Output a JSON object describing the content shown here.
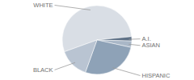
{
  "chart_data": {
    "type": "pie",
    "categories": [
      "WHITE",
      "A.I.",
      "ASIAN",
      "HISPANIC",
      "BLACK"
    ],
    "values": [
      54,
      2,
      3,
      27,
      14
    ],
    "colors": [
      "#d9dee5",
      "#5d7086",
      "#a9b7c7",
      "#8ea2b7",
      "#b9c4d2"
    ]
  }
}
